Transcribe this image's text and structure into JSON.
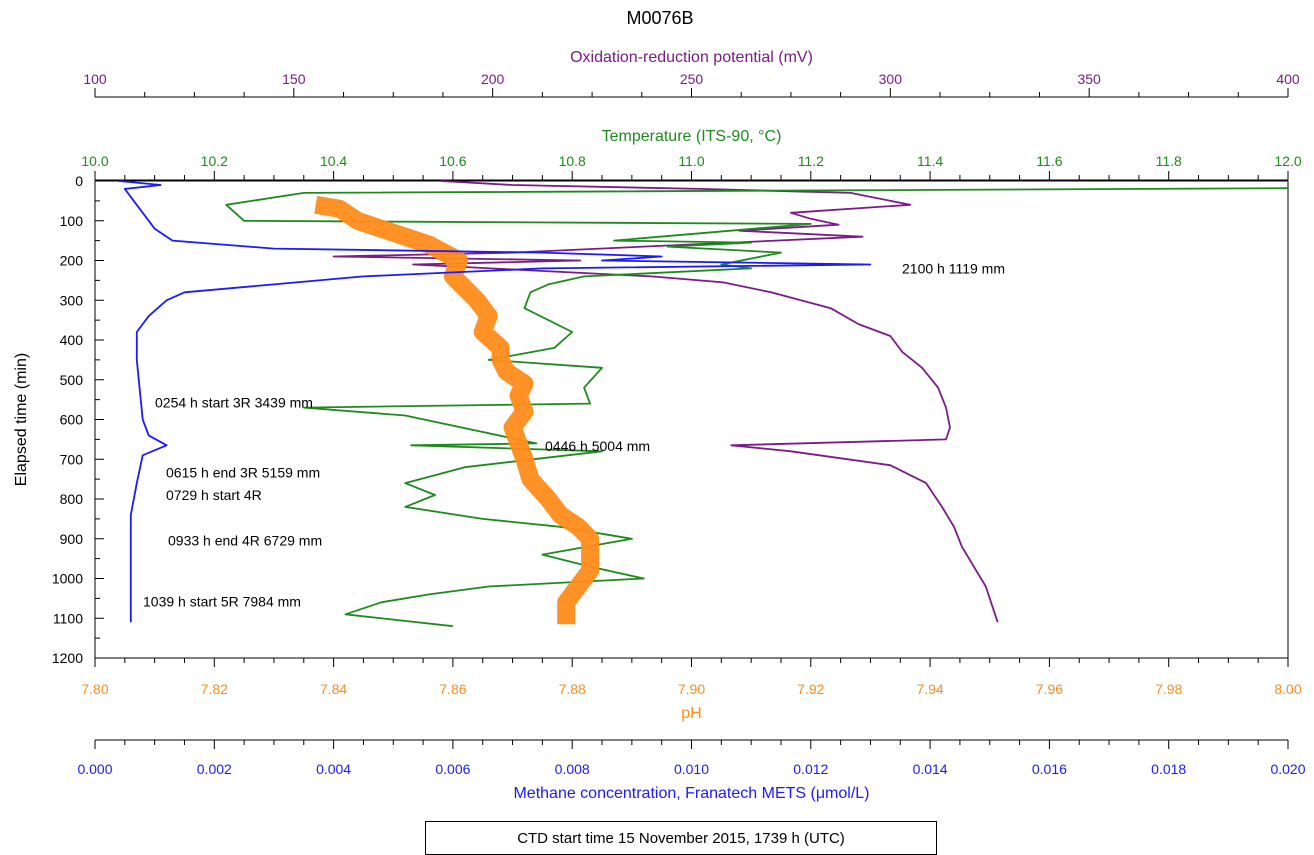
{
  "title": "M0076B",
  "footer": "CTD start time 15 November 2015, 1739 h (UTC)",
  "colors": {
    "orp": "#7a1b86",
    "temperature": "#1e8a1e",
    "ph": "#ff8c1a",
    "methane": "#1a1aff",
    "axis": "#000000"
  },
  "chart_data": {
    "type": "line",
    "title": "M0076B",
    "y_axis": {
      "label": "Elapsed time (min)",
      "range": [
        0,
        1200
      ],
      "inverted": true,
      "ticks": [
        "0",
        "100",
        "200",
        "300",
        "400",
        "500",
        "600",
        "700",
        "800",
        "900",
        "1000",
        "1100",
        "1200"
      ]
    },
    "x_axes": [
      {
        "id": "orp",
        "label": "Oxidation-reduction potential (mV)",
        "position": "top-outer",
        "range": [
          100,
          400
        ],
        "ticks": [
          "100",
          "150",
          "200",
          "250",
          "300",
          "350",
          "400"
        ]
      },
      {
        "id": "temperature",
        "label": "Temperature (ITS-90, °C)",
        "position": "top-inner",
        "range": [
          10.0,
          12.0
        ],
        "ticks": [
          "10.0",
          "10.2",
          "10.4",
          "10.6",
          "10.8",
          "11.0",
          "11.2",
          "11.4",
          "11.6",
          "11.8",
          "12.0"
        ]
      },
      {
        "id": "ph",
        "label": "pH",
        "position": "bottom-inner",
        "range": [
          7.8,
          8.0
        ],
        "ticks": [
          "7.80",
          "7.82",
          "7.84",
          "7.86",
          "7.88",
          "7.90",
          "7.92",
          "7.94",
          "7.96",
          "7.98",
          "8.00"
        ]
      },
      {
        "id": "methane",
        "label": "Methane concentration, Franatech METS (μmol/L)",
        "position": "bottom-outer",
        "range": [
          0,
          0.02
        ],
        "ticks": [
          "0.000",
          "0.002",
          "0.004",
          "0.006",
          "0.008",
          "0.010",
          "0.012",
          "0.014",
          "0.016",
          "0.018",
          "0.020"
        ]
      }
    ],
    "series": [
      {
        "axis": "orp",
        "points": [
          [
            187,
            0
          ],
          [
            205,
            10
          ],
          [
            252,
            20
          ],
          [
            290,
            30
          ],
          [
            305,
            60
          ],
          [
            275,
            80
          ],
          [
            280,
            95
          ],
          [
            287,
            110
          ],
          [
            262,
            125
          ],
          [
            293,
            140
          ],
          [
            205,
            180
          ],
          [
            160,
            190
          ],
          [
            222,
            200
          ],
          [
            180,
            210
          ],
          [
            240,
            240
          ],
          [
            258,
            255
          ],
          [
            270,
            280
          ],
          [
            285,
            320
          ],
          [
            292,
            360
          ],
          [
            300,
            390
          ],
          [
            303,
            430
          ],
          [
            308,
            470
          ],
          [
            312,
            520
          ],
          [
            314,
            570
          ],
          [
            315,
            620
          ],
          [
            314,
            650
          ],
          [
            260,
            665
          ],
          [
            275,
            680
          ],
          [
            300,
            715
          ],
          [
            309,
            760
          ],
          [
            313,
            820
          ],
          [
            316,
            870
          ],
          [
            318,
            920
          ],
          [
            321,
            970
          ],
          [
            324,
            1020
          ],
          [
            326,
            1080
          ],
          [
            327,
            1110
          ]
        ]
      },
      {
        "axis": "temperature",
        "points": [
          [
            12.0,
            18
          ],
          [
            10.35,
            30
          ],
          [
            10.22,
            60
          ],
          [
            10.25,
            100
          ],
          [
            11.2,
            108
          ],
          [
            10.87,
            150
          ],
          [
            11.1,
            155
          ],
          [
            10.96,
            165
          ],
          [
            11.15,
            180
          ],
          [
            11.05,
            210
          ],
          [
            11.1,
            220
          ],
          [
            10.82,
            240
          ],
          [
            10.76,
            260
          ],
          [
            10.73,
            280
          ],
          [
            10.72,
            320
          ],
          [
            10.8,
            380
          ],
          [
            10.77,
            420
          ],
          [
            10.66,
            450
          ],
          [
            10.85,
            470
          ],
          [
            10.82,
            520
          ],
          [
            10.83,
            560
          ],
          [
            10.35,
            570
          ],
          [
            10.52,
            590
          ],
          [
            10.74,
            660
          ],
          [
            10.53,
            665
          ],
          [
            10.85,
            680
          ],
          [
            10.62,
            720
          ],
          [
            10.52,
            760
          ],
          [
            10.57,
            790
          ],
          [
            10.52,
            820
          ],
          [
            10.65,
            850
          ],
          [
            10.78,
            870
          ],
          [
            10.9,
            900
          ],
          [
            10.75,
            940
          ],
          [
            10.83,
            970
          ],
          [
            10.92,
            1000
          ],
          [
            10.66,
            1020
          ],
          [
            10.56,
            1040
          ],
          [
            10.48,
            1060
          ],
          [
            10.42,
            1090
          ],
          [
            10.6,
            1120
          ]
        ]
      },
      {
        "axis": "ph",
        "points": [
          [
            7.837,
            60
          ],
          [
            7.841,
            70
          ],
          [
            7.844,
            100
          ],
          [
            7.852,
            140
          ],
          [
            7.856,
            160
          ],
          [
            7.861,
            200
          ],
          [
            7.86,
            240
          ],
          [
            7.862,
            270
          ],
          [
            7.864,
            300
          ],
          [
            7.866,
            340
          ],
          [
            7.865,
            380
          ],
          [
            7.868,
            420
          ],
          [
            7.868,
            450
          ],
          [
            7.869,
            480
          ],
          [
            7.872,
            510
          ],
          [
            7.871,
            540
          ],
          [
            7.872,
            580
          ],
          [
            7.87,
            620
          ],
          [
            7.871,
            660
          ],
          [
            7.872,
            700
          ],
          [
            7.873,
            750
          ],
          [
            7.876,
            800
          ],
          [
            7.878,
            840
          ],
          [
            7.881,
            870
          ],
          [
            7.883,
            900
          ],
          [
            7.883,
            940
          ],
          [
            7.883,
            980
          ],
          [
            7.881,
            1020
          ],
          [
            7.879,
            1060
          ],
          [
            7.879,
            1090
          ],
          [
            7.879,
            1115
          ]
        ]
      },
      {
        "axis": "methane",
        "points": [
          [
            0.0004,
            0
          ],
          [
            0.0011,
            10
          ],
          [
            0.0005,
            20
          ],
          [
            0.0006,
            40
          ],
          [
            0.0008,
            80
          ],
          [
            0.001,
            120
          ],
          [
            0.0013,
            150
          ],
          [
            0.003,
            170
          ],
          [
            0.0075,
            180
          ],
          [
            0.0095,
            190
          ],
          [
            0.0085,
            200
          ],
          [
            0.013,
            210
          ],
          [
            0.0075,
            220
          ],
          [
            0.0045,
            240
          ],
          [
            0.003,
            260
          ],
          [
            0.0015,
            280
          ],
          [
            0.0012,
            300
          ],
          [
            0.0009,
            340
          ],
          [
            0.0007,
            380
          ],
          [
            0.0007,
            450
          ],
          [
            0.0008,
            600
          ],
          [
            0.0009,
            640
          ],
          [
            0.0012,
            665
          ],
          [
            0.0008,
            690
          ],
          [
            0.0007,
            760
          ],
          [
            0.0006,
            840
          ],
          [
            0.0006,
            1000
          ],
          [
            0.0006,
            1110
          ]
        ]
      }
    ],
    "annotations": [
      {
        "text": "2100 h 1119 mm",
        "y": 220
      },
      {
        "text": "0254 h start 3R 3439 mm",
        "y": 557
      },
      {
        "text": "0446 h 5004 mm",
        "y": 667
      },
      {
        "text": "0615 h end 3R 5159 mm",
        "y": 733
      },
      {
        "text": "0729 h start 4R",
        "y": 790
      },
      {
        "text": "0933 h end 4R 6729 mm",
        "y": 905
      },
      {
        "text": "1039 h start 5R 7984 mm",
        "y": 1058
      }
    ],
    "grid": false,
    "legend": "none"
  }
}
